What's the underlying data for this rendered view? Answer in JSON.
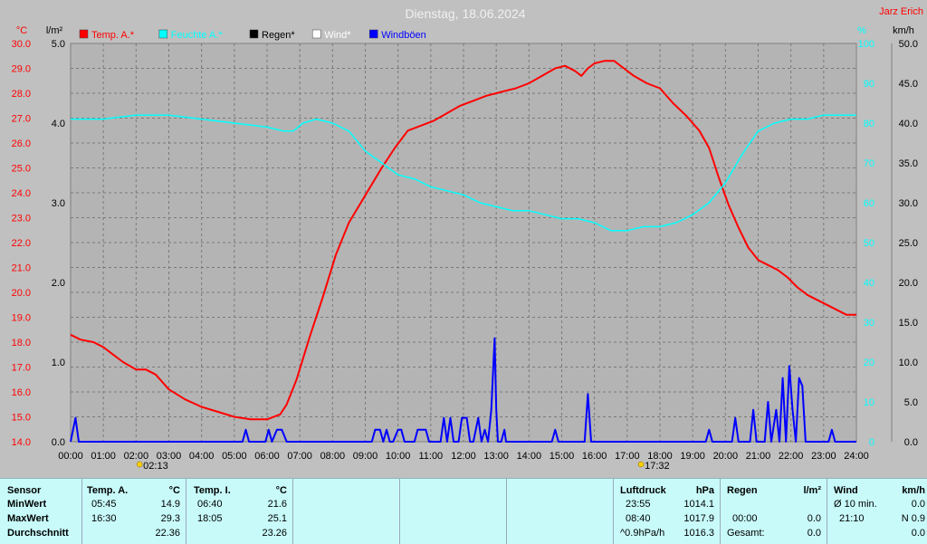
{
  "title": "Dienstag, 18.06.2024",
  "author": "Jarz Erich",
  "legend": [
    {
      "label": "Temp. A.*",
      "color": "#ff0000"
    },
    {
      "label": "Feuchte A.*",
      "color": "#00ffff"
    },
    {
      "label": "Regen*",
      "color": "#000000"
    },
    {
      "label": "Wind*",
      "color": "#ffffff"
    },
    {
      "label": "Windböen",
      "color": "#0000ff"
    }
  ],
  "chart_data": {
    "type": "line",
    "x_ticks": [
      "00:00",
      "01:00",
      "02:00",
      "03:00",
      "04:00",
      "05:00",
      "06:00",
      "07:00",
      "08:00",
      "09:00",
      "10:00",
      "11:00",
      "12:00",
      "13:00",
      "14:00",
      "15:00",
      "16:00",
      "17:00",
      "18:00",
      "19:00",
      "20:00",
      "21:00",
      "22:00",
      "23:00",
      "24:00"
    ],
    "axes": {
      "temp": {
        "unit": "°C",
        "min": 14.0,
        "max": 30.0,
        "ticks": [
          "30.0",
          "29.0",
          "28.0",
          "27.0",
          "26.0",
          "25.0",
          "24.0",
          "23.0",
          "22.0",
          "21.0",
          "20.0",
          "19.0",
          "18.0",
          "17.0",
          "16.0",
          "15.0",
          "14.0"
        ]
      },
      "rain": {
        "unit": "l/m²",
        "min": 0.0,
        "max": 5.0,
        "ticks": [
          "5.0",
          "4.0",
          "3.0",
          "2.0",
          "1.0",
          "0.0"
        ]
      },
      "humidity": {
        "unit": "%",
        "min": 0,
        "max": 100,
        "ticks": [
          "100",
          "90",
          "80",
          "70",
          "60",
          "50",
          "40",
          "30",
          "20",
          "10",
          "0"
        ]
      },
      "wind": {
        "unit": "km/h",
        "min": 0.0,
        "max": 50.0,
        "ticks": [
          "50.0",
          "45.0",
          "40.0",
          "35.0",
          "30.0",
          "25.0",
          "20.0",
          "15.0",
          "10.0",
          "5.0",
          "0.0"
        ]
      }
    },
    "series": [
      {
        "name": "Temp. A.*",
        "axis": "temp",
        "color": "#ff0000",
        "x": [
          0,
          0.3,
          0.7,
          1.0,
          1.3,
          1.6,
          2.0,
          2.3,
          2.6,
          3.0,
          3.5,
          4.0,
          4.5,
          5.0,
          5.5,
          6.0,
          6.4,
          6.6,
          6.9,
          7.3,
          7.7,
          8.1,
          8.5,
          9.0,
          9.5,
          9.9,
          10.3,
          10.7,
          11.1,
          11.5,
          11.9,
          12.3,
          12.7,
          13.0,
          13.3,
          13.6,
          14.0,
          14.4,
          14.8,
          15.1,
          15.4,
          15.6,
          15.8,
          16.0,
          16.3,
          16.6,
          16.9,
          17.2,
          17.6,
          18.0,
          18.4,
          18.8,
          19.2,
          19.5,
          19.8,
          20.1,
          20.4,
          20.7,
          21.0,
          21.3,
          21.6,
          21.9,
          22.2,
          22.5,
          22.8,
          23.1,
          23.4,
          23.7,
          24.0
        ],
        "y": [
          18.3,
          18.1,
          18.0,
          17.8,
          17.5,
          17.2,
          16.9,
          16.9,
          16.7,
          16.1,
          15.7,
          15.4,
          15.2,
          15.0,
          14.9,
          14.9,
          15.1,
          15.5,
          16.5,
          18.2,
          19.8,
          21.5,
          22.8,
          23.9,
          25.0,
          25.8,
          26.5,
          26.7,
          26.9,
          27.2,
          27.5,
          27.7,
          27.9,
          28.0,
          28.1,
          28.2,
          28.4,
          28.7,
          29.0,
          29.1,
          28.9,
          28.7,
          29.0,
          29.2,
          29.3,
          29.3,
          29.0,
          28.7,
          28.4,
          28.2,
          27.6,
          27.1,
          26.5,
          25.8,
          24.6,
          23.5,
          22.6,
          21.8,
          21.3,
          21.1,
          20.9,
          20.6,
          20.2,
          19.9,
          19.7,
          19.5,
          19.3,
          19.1,
          19.1
        ]
      },
      {
        "name": "Feuchte A.*",
        "axis": "humidity",
        "color": "#00ffff",
        "x": [
          0,
          1,
          2,
          3,
          4,
          5,
          6,
          6.5,
          6.8,
          7.1,
          7.5,
          8,
          8.5,
          9,
          9.5,
          10,
          10.5,
          11,
          11.5,
          12,
          12.5,
          13,
          13.5,
          14,
          14.5,
          15,
          15.5,
          16,
          16.5,
          17,
          17.5,
          18,
          18.5,
          19,
          19.5,
          20,
          20.5,
          21,
          21.5,
          22,
          22.5,
          23,
          23.5,
          24
        ],
        "y": [
          81,
          81,
          82,
          82,
          81,
          80,
          79,
          78,
          78,
          80,
          81,
          80,
          78,
          73,
          70,
          67,
          66,
          64,
          63,
          62,
          60,
          59,
          58,
          58,
          57,
          56,
          56,
          55,
          53,
          53,
          54,
          54,
          55,
          57,
          60,
          65,
          72,
          78,
          80,
          81,
          81,
          82,
          82,
          82
        ]
      },
      {
        "name": "Windböen",
        "axis": "wind",
        "color": "#0000ff",
        "x": [
          0,
          0.15,
          0.25,
          0.4,
          0.55,
          5.25,
          5.35,
          5.45,
          5.95,
          6.05,
          6.15,
          6.3,
          6.45,
          6.6,
          9.2,
          9.3,
          9.45,
          9.55,
          9.65,
          9.75,
          9.85,
          10.0,
          10.1,
          10.2,
          10.5,
          10.6,
          10.85,
          10.95,
          11.3,
          11.4,
          11.5,
          11.6,
          11.7,
          11.85,
          11.95,
          12.1,
          12.2,
          12.3,
          12.45,
          12.55,
          12.65,
          12.75,
          12.85,
          12.95,
          13.0,
          13.05,
          13.15,
          13.25,
          13.3,
          14.7,
          14.8,
          14.9,
          15.7,
          15.8,
          15.9,
          19.4,
          19.5,
          19.6,
          20.2,
          20.3,
          20.4,
          20.75,
          20.85,
          20.95,
          21.2,
          21.3,
          21.4,
          21.55,
          21.65,
          21.75,
          21.85,
          21.95,
          22.05,
          22.15,
          22.25,
          22.35,
          22.45,
          22.55,
          22.65,
          23.15,
          23.25,
          23.35,
          23.45,
          23.55,
          23.65,
          24.0
        ],
        "y": [
          0,
          3,
          0,
          0,
          0,
          0,
          1.5,
          0,
          0,
          1.5,
          0,
          1.5,
          1.5,
          0,
          0,
          1.5,
          1.5,
          0,
          1.5,
          0,
          0,
          1.5,
          1.5,
          0,
          0,
          1.5,
          1.5,
          0,
          0,
          3,
          0,
          3,
          0,
          0,
          3,
          3,
          0,
          0,
          3,
          0,
          1.5,
          0,
          4,
          13,
          4,
          0,
          0,
          1.5,
          0,
          0,
          1.5,
          0,
          0,
          6,
          0,
          0,
          1.5,
          0,
          0,
          3,
          0,
          0,
          4,
          0,
          0,
          5,
          0,
          4,
          0,
          8,
          0,
          9.5,
          4,
          0,
          8,
          7,
          0,
          0,
          0,
          0,
          1.5,
          0,
          0,
          0,
          0,
          0
        ]
      }
    ],
    "sun_markers": [
      {
        "label": "02:13",
        "x": 2.2167
      },
      {
        "label": "17:32",
        "x": 17.5333
      }
    ]
  },
  "table": {
    "sensor": {
      "header": "Sensor",
      "rows": [
        "MinWert",
        "MaxWert",
        "Durchschnitt"
      ]
    },
    "temp_a": {
      "header": "Temp. A.",
      "unit": "°C",
      "rows": [
        [
          "05:45",
          "14.9"
        ],
        [
          "16:30",
          "29.3"
        ],
        [
          "",
          "22.36"
        ]
      ]
    },
    "temp_i": {
      "header": "Temp. I.",
      "unit": "°C",
      "rows": [
        [
          "06:40",
          "21.6"
        ],
        [
          "18:05",
          "25.1"
        ],
        [
          "",
          "23.26"
        ]
      ]
    },
    "pressure": {
      "header": "Luftdruck",
      "unit": "hPa",
      "rows": [
        [
          "23:55",
          "1014.1"
        ],
        [
          "08:40",
          "1017.9"
        ],
        [
          "^0.9hPa/h",
          "1016.3"
        ]
      ]
    },
    "rain": {
      "header": "Regen",
      "unit": "l/m²",
      "rows": [
        [
          "",
          ""
        ],
        [
          "00:00",
          "0.0"
        ],
        [
          "Gesamt:",
          "0.0"
        ]
      ]
    },
    "wind": {
      "header": "Wind",
      "unit": "km/h",
      "rows": [
        [
          "Ø 10 min.",
          "0.0"
        ],
        [
          "21:10",
          "N 0.9"
        ],
        [
          "",
          "0.0"
        ]
      ]
    }
  }
}
